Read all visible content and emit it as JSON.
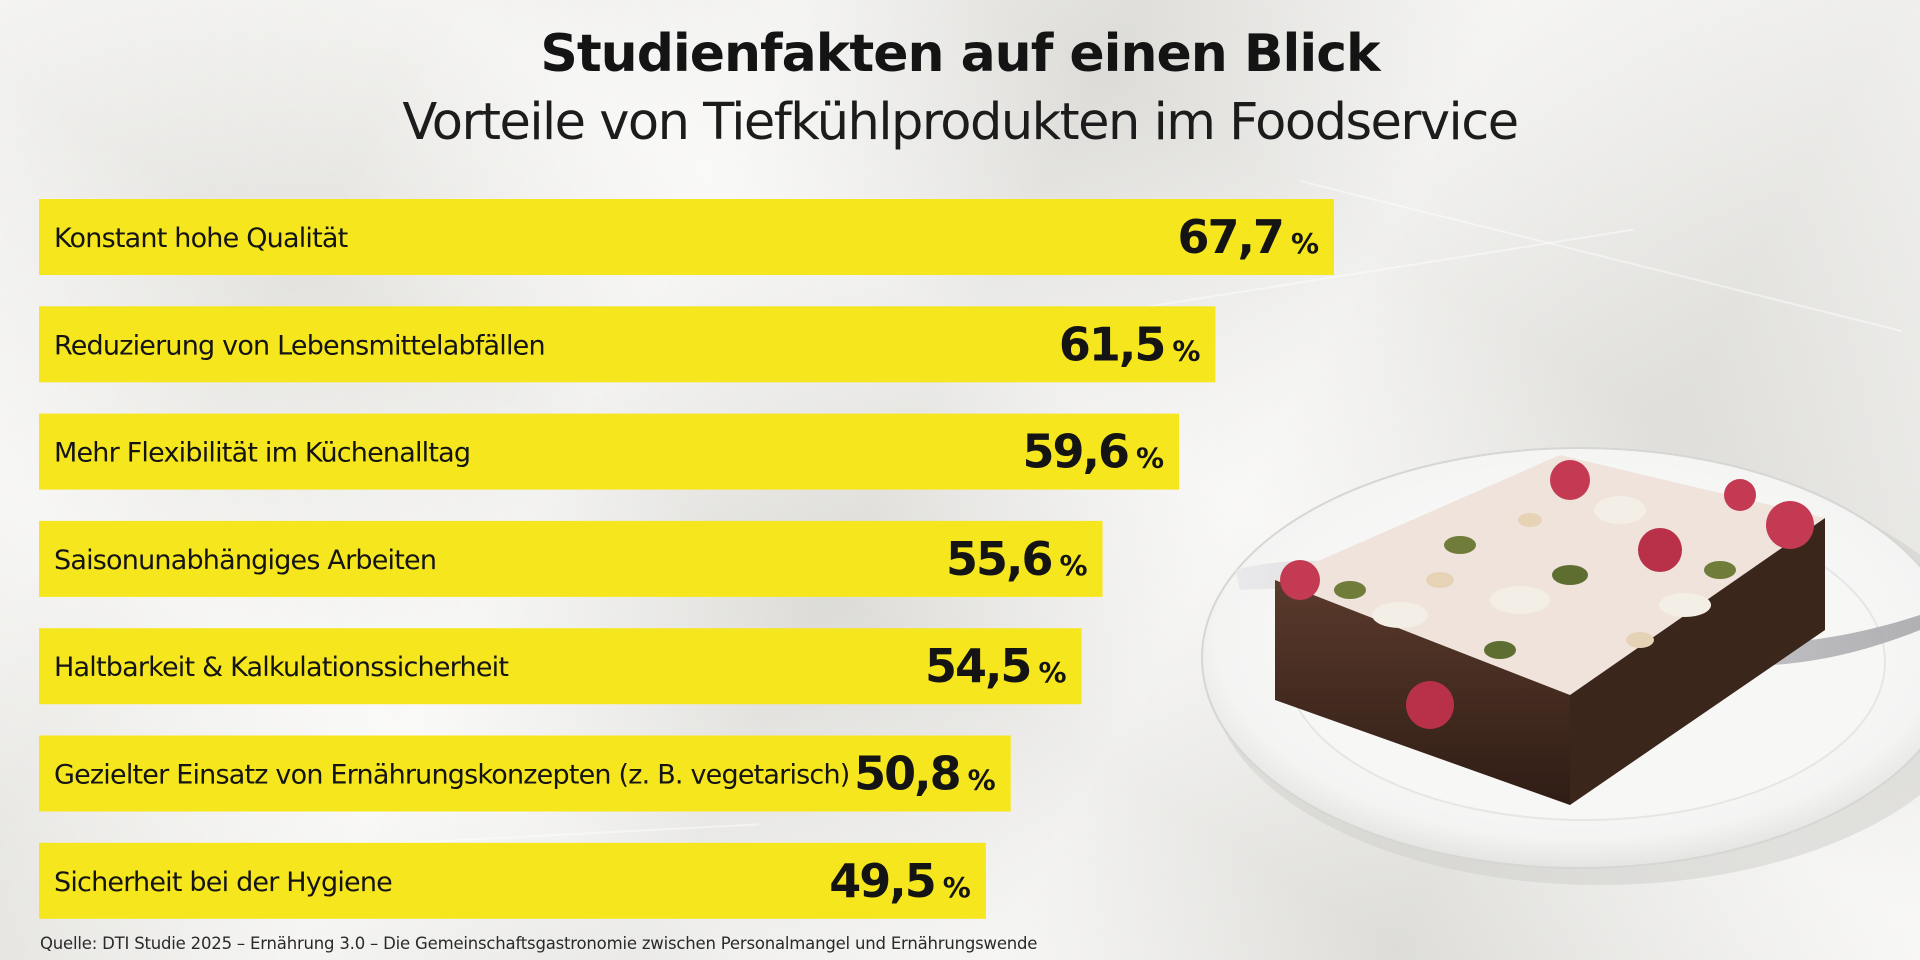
{
  "header": {
    "title": "Studienfakten auf einen Blick",
    "subtitle": "Vorteile von Tiefkühlprodukten im Foodservice"
  },
  "chart_data": {
    "type": "bar",
    "orientation": "horizontal",
    "title": "Studienfakten auf einen Blick",
    "subtitle": "Vorteile von Tiefkühlprodukten im Foodservice",
    "categories": [
      "Konstant hohe Qualität",
      "Reduzierung von Lebensmittelabfällen",
      "Mehr Flexibilität im Küchenalltag",
      "Saisonunabhängiges Arbeiten",
      "Haltbarkeit & Kalkulationssicherheit",
      "Gezielter Einsatz von Ernährungskonzepten (z. B. vegetarisch)",
      "Sicherheit bei der Hygiene"
    ],
    "values": [
      67.7,
      61.5,
      59.6,
      55.6,
      54.5,
      50.8,
      49.5
    ],
    "value_labels": [
      "67,7",
      "61,5",
      "59,6",
      "55,6",
      "54,5",
      "50,8",
      "49,5"
    ],
    "unit": "%",
    "bar_color": "#f6e61e",
    "grid": false,
    "legend": "none"
  },
  "source": "Quelle: DTI Studie 2025 – Ernährung 3.0 – Die Gemeinschaftsgastronomie zwischen Personalmangel und Ernährungswende",
  "image": {
    "icon": "food-photo-icon",
    "description_name": "brownie-on-plate"
  },
  "colors": {
    "background": "#ebeae6",
    "bar": "#f6e61e",
    "text": "#141414"
  }
}
